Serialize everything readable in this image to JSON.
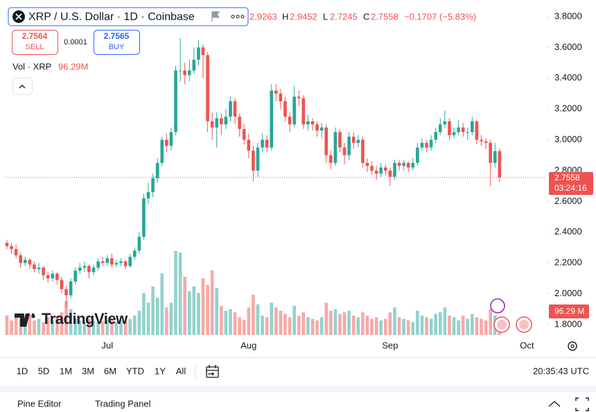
{
  "header": {
    "symbol": "XRP / U.S. Dollar · 1D · Coinbase",
    "open": "2.9263",
    "high_label": "H",
    "high": "2.9452",
    "low_label": "L",
    "low": "2.7245",
    "close_label": "C",
    "close": "2.7558",
    "change": "−0.1707 (−5.83%)"
  },
  "trade": {
    "sell_price": "2.7564",
    "sell": "SELL",
    "spread": "0.0001",
    "buy_price": "2.7565",
    "buy": "BUY"
  },
  "volume_legend": {
    "label": "Vol · XRP",
    "value": "96.29M"
  },
  "price_tag": {
    "price": "2.7558",
    "countdown": "03:24:16"
  },
  "volume_tag": "96.29 M",
  "watermark": "TradingView",
  "toolbar": {
    "ranges": [
      "1D",
      "5D",
      "1M",
      "3M",
      "6M",
      "YTD",
      "1Y",
      "All"
    ],
    "clock": "20:35:43 UTC"
  },
  "bottom_panel": {
    "tabs": [
      "Pine Editor",
      "Trading Panel"
    ]
  },
  "chart_data": {
    "type": "candlestick",
    "up_color": "#26a69a",
    "down_color": "#ef5350",
    "grid": false,
    "ylim": [
      1.732,
      3.908
    ],
    "yticks": [
      {
        "value": 1.8,
        "label": "1.8000"
      },
      {
        "value": 2.0,
        "label": "2.0000"
      },
      {
        "value": 2.2,
        "label": "2.2000"
      },
      {
        "value": 2.4,
        "label": "2.4000"
      },
      {
        "value": 2.6,
        "label": "2.6000"
      },
      {
        "value": 2.8,
        "label": "2.8000"
      },
      {
        "value": 3.0,
        "label": "3.0000"
      },
      {
        "value": 3.2,
        "label": "3.2000"
      },
      {
        "value": 3.4,
        "label": "3.4000"
      },
      {
        "value": 3.6,
        "label": "3.6000"
      },
      {
        "value": 3.8,
        "label": "3.8000"
      }
    ],
    "xlim": [
      -0.3,
      118.2
    ],
    "xticks": [
      {
        "value": 22,
        "label": "Jul"
      },
      {
        "value": 53,
        "label": "Aug"
      },
      {
        "value": 84,
        "label": "Sep"
      },
      {
        "value": 114,
        "label": "Oct"
      }
    ],
    "volume_lim": [
      0,
      600
    ],
    "open": [
      2.33,
      2.31,
      2.29,
      2.25,
      2.2,
      2.22,
      2.19,
      2.16,
      2.17,
      2.12,
      2.1,
      2.13,
      2.09,
      2.03,
      1.99,
      2.08,
      2.15,
      2.17,
      2.18,
      2.14,
      2.17,
      2.21,
      2.2,
      2.23,
      2.19,
      2.2,
      2.21,
      2.18,
      2.24,
      2.28,
      2.37,
      2.62,
      2.66,
      2.75,
      2.85,
      3.0,
      2.96,
      3.05,
      3.45,
      3.45,
      3.42,
      3.45,
      3.52,
      3.6,
      3.55,
      3.12,
      3.08,
      3.14,
      3.1,
      3.15,
      3.25,
      3.15,
      3.07,
      3.0,
      2.93,
      2.8,
      2.95,
      3.0,
      2.95,
      3.32,
      3.3,
      3.25,
      3.15,
      3.1,
      3.28,
      3.27,
      3.1,
      3.12,
      3.1,
      3.06,
      3.08,
      2.9,
      2.85,
      3.05,
      2.95,
      2.9,
      3.02,
      2.98,
      3.0,
      2.85,
      2.83,
      2.8,
      2.78,
      2.82,
      2.8,
      2.76,
      2.85,
      2.83,
      2.85,
      2.82,
      2.85,
      2.95,
      2.98,
      2.95,
      3.0,
      3.05,
      3.1,
      3.12,
      3.03,
      3.05,
      3.08,
      3.05,
      3.05,
      3.12,
      3.0,
      2.99,
      2.98,
      2.85,
      2.9263
    ],
    "high": [
      2.35,
      2.33,
      2.32,
      2.27,
      2.24,
      2.23,
      2.21,
      2.2,
      2.18,
      2.14,
      2.15,
      2.14,
      2.11,
      2.05,
      2.1,
      2.17,
      2.2,
      2.21,
      2.19,
      2.19,
      2.23,
      2.24,
      2.25,
      2.26,
      2.22,
      2.23,
      2.22,
      2.26,
      2.3,
      2.4,
      2.65,
      2.72,
      2.78,
      2.88,
      3.02,
      3.04,
      3.08,
      3.48,
      3.66,
      3.5,
      3.52,
      3.6,
      3.65,
      3.62,
      3.57,
      3.18,
      3.18,
      3.17,
      3.2,
      3.28,
      3.27,
      3.17,
      3.1,
      3.04,
      2.96,
      2.98,
      3.04,
      3.03,
      3.36,
      3.36,
      3.33,
      3.28,
      3.18,
      3.35,
      3.32,
      3.29,
      3.16,
      3.14,
      3.12,
      3.11,
      3.1,
      2.93,
      3.08,
      3.07,
      2.98,
      3.05,
      3.05,
      3.03,
      3.02,
      2.88,
      2.86,
      2.83,
      2.85,
      2.84,
      2.82,
      2.87,
      2.87,
      2.87,
      2.86,
      2.88,
      2.98,
      3.01,
      3.0,
      3.03,
      3.08,
      3.14,
      3.19,
      3.14,
      3.08,
      3.13,
      3.11,
      3.08,
      3.15,
      3.13,
      3.03,
      3.01,
      3.0,
      2.98,
      2.9452
    ],
    "low": [
      2.29,
      2.26,
      2.23,
      2.17,
      2.18,
      2.16,
      2.14,
      2.13,
      2.09,
      2.07,
      2.08,
      2.06,
      2.0,
      1.91,
      1.97,
      2.06,
      2.13,
      2.14,
      2.1,
      2.12,
      2.15,
      2.18,
      2.18,
      2.17,
      2.17,
      2.18,
      2.16,
      2.17,
      2.22,
      2.26,
      2.35,
      2.58,
      2.63,
      2.72,
      2.83,
      2.92,
      2.93,
      3.03,
      3.38,
      3.36,
      3.38,
      3.43,
      3.48,
      3.4,
      3.05,
      3.0,
      2.95,
      3.03,
      3.07,
      3.12,
      3.1,
      3.02,
      2.97,
      2.88,
      2.73,
      2.76,
      2.92,
      2.92,
      2.93,
      3.25,
      3.2,
      3.12,
      3.05,
      3.08,
      3.22,
      3.07,
      3.06,
      3.06,
      3.02,
      3.01,
      2.85,
      2.81,
      2.83,
      2.92,
      2.84,
      2.87,
      2.94,
      2.95,
      2.82,
      2.79,
      2.77,
      2.74,
      2.76,
      2.77,
      2.7,
      2.74,
      2.8,
      2.8,
      2.79,
      2.8,
      2.83,
      2.93,
      2.92,
      2.93,
      2.98,
      3.03,
      3.08,
      3.0,
      3.01,
      3.03,
      3.02,
      3.0,
      3.03,
      2.97,
      2.96,
      2.94,
      2.7,
      2.82,
      2.7245
    ],
    "close": [
      2.31,
      2.29,
      2.25,
      2.2,
      2.22,
      2.19,
      2.16,
      2.17,
      2.12,
      2.1,
      2.13,
      2.09,
      2.03,
      1.99,
      2.08,
      2.15,
      2.17,
      2.18,
      2.14,
      2.17,
      2.21,
      2.2,
      2.23,
      2.19,
      2.2,
      2.21,
      2.18,
      2.24,
      2.28,
      2.37,
      2.62,
      2.66,
      2.75,
      2.85,
      3.0,
      2.96,
      3.05,
      3.45,
      3.45,
      3.42,
      3.45,
      3.52,
      3.6,
      3.55,
      3.12,
      3.08,
      3.14,
      3.1,
      3.15,
      3.25,
      3.15,
      3.07,
      3.0,
      2.93,
      2.8,
      2.95,
      3.0,
      2.95,
      3.32,
      3.3,
      3.25,
      3.15,
      3.1,
      3.28,
      3.27,
      3.1,
      3.12,
      3.1,
      3.06,
      3.08,
      2.9,
      2.85,
      3.05,
      2.95,
      2.9,
      3.02,
      2.98,
      3.0,
      2.85,
      2.83,
      2.8,
      2.78,
      2.82,
      2.8,
      2.76,
      2.85,
      2.83,
      2.85,
      2.82,
      2.85,
      2.95,
      2.98,
      2.95,
      3.0,
      3.05,
      3.1,
      3.12,
      3.03,
      3.05,
      3.08,
      3.05,
      3.05,
      3.12,
      3.0,
      2.99,
      2.98,
      2.85,
      2.9265,
      2.7558
    ],
    "volume": [
      120,
      90,
      110,
      100,
      80,
      130,
      90,
      100,
      80,
      110,
      90,
      120,
      140,
      210,
      160,
      100,
      90,
      80,
      100,
      90,
      80,
      85,
      90,
      100,
      80,
      90,
      85,
      100,
      120,
      150,
      260,
      200,
      300,
      230,
      380,
      170,
      200,
      520,
      510,
      360,
      270,
      300,
      260,
      350,
      310,
      400,
      290,
      180,
      150,
      160,
      140,
      110,
      95,
      170,
      250,
      190,
      120,
      110,
      200,
      170,
      150,
      130,
      110,
      180,
      120,
      140,
      110,
      100,
      90,
      110,
      200,
      150,
      160,
      130,
      140,
      150,
      120,
      110,
      140,
      120,
      100,
      110,
      90,
      100,
      140,
      170,
      110,
      100,
      90,
      80,
      150,
      120,
      110,
      100,
      130,
      140,
      170,
      120,
      110,
      90,
      120,
      100,
      130,
      110,
      100,
      90,
      160,
      120,
      96.29
    ]
  }
}
